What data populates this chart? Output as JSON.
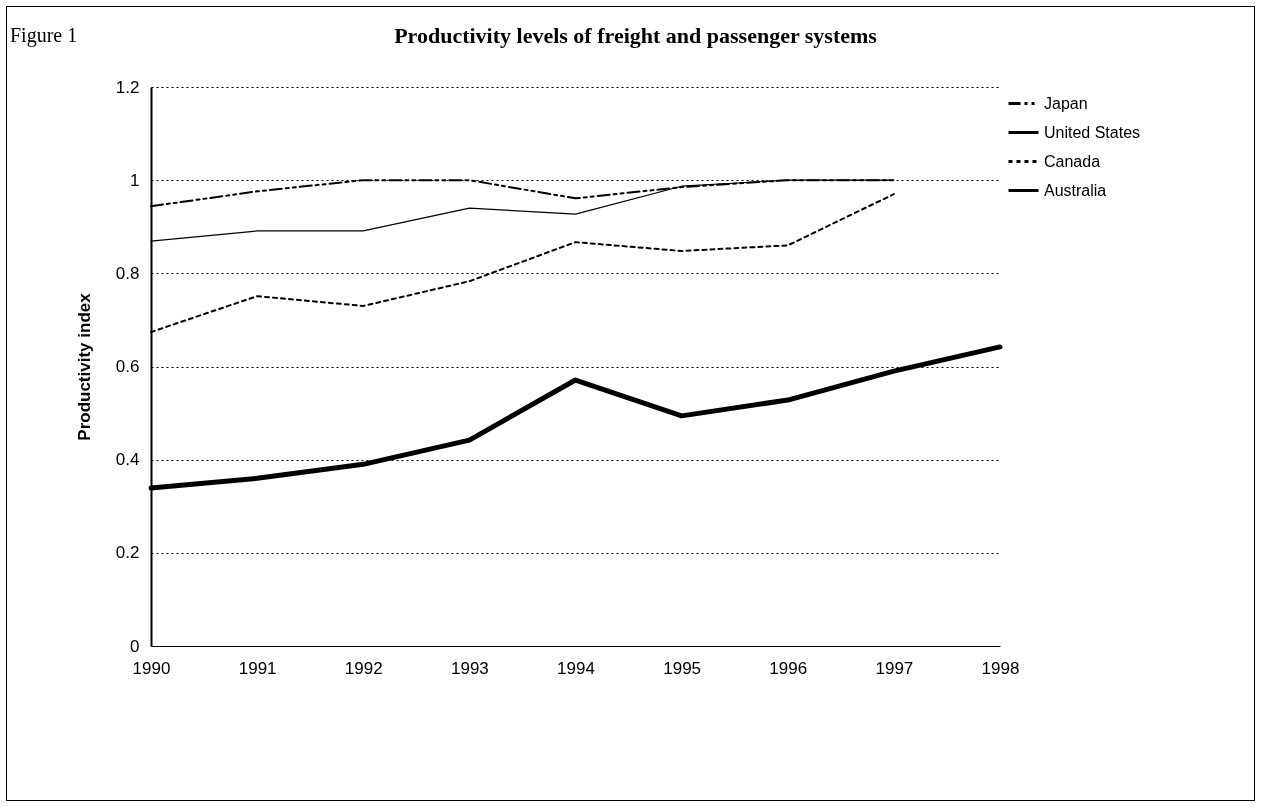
{
  "chart_data": {
    "type": "line",
    "title": "Productivity levels of freight and passenger systems",
    "annotations": [
      "Figure 1"
    ],
    "ylabel": "Productivity index",
    "categories": [
      "1990",
      "1991",
      "1992",
      "1993",
      "1994",
      "1995",
      "1996",
      "1997",
      "1998"
    ],
    "series": [
      {
        "name": "Japan",
        "color": "#000000",
        "line_style": "dashed",
        "values": [
          0.944,
          0.976,
          1.0,
          1.0,
          0.961,
          0.985,
          1.0,
          1.0,
          null
        ]
      },
      {
        "name": "United States",
        "color": "#000000",
        "line_style": "solid",
        "values": [
          0.869,
          0.891,
          0.891,
          0.94,
          0.927,
          0.987,
          1.0,
          1.0,
          null
        ]
      },
      {
        "name": "Canada",
        "color": "#000000",
        "line_style": "dotted",
        "values": [
          0.674,
          0.751,
          0.73,
          0.783,
          0.867,
          0.848,
          0.86,
          0.97,
          null
        ]
      },
      {
        "name": "Australia",
        "color": "#000000",
        "line_style": "solid",
        "values": [
          0.339,
          0.36,
          0.39,
          0.442,
          0.571,
          0.494,
          0.528,
          0.59,
          0.642
        ]
      }
    ],
    "ylim": [
      0,
      1.2
    ],
    "yticks": [
      0,
      0.2,
      0.4,
      0.6,
      0.8,
      1,
      1.2
    ],
    "grid": "y",
    "legend": "right"
  }
}
